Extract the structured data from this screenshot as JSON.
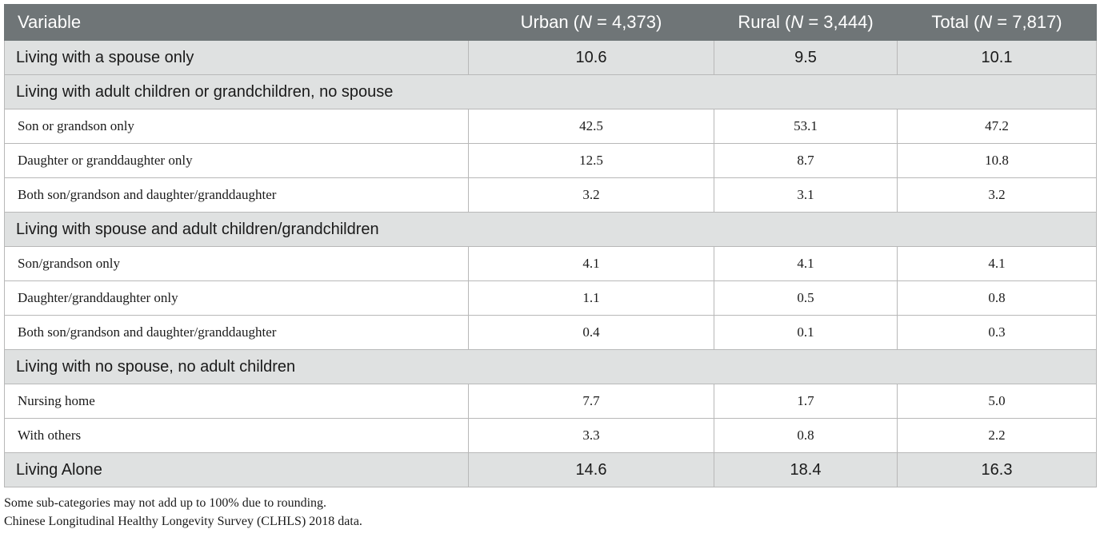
{
  "header": {
    "variable": "Variable",
    "urban_prefix": "Urban (",
    "urban_n": "N",
    "urban_suffix": " = 4,373)",
    "rural_prefix": "Rural (",
    "rural_n": "N",
    "rural_suffix": " = 3,444)",
    "total_prefix": "Total (",
    "total_n": "N",
    "total_suffix": " = 7,817)"
  },
  "rows": [
    {
      "label": "Living with a spouse only",
      "urban": "10.6",
      "rural": "9.5",
      "total": "10.1"
    },
    {
      "label": "Living with adult children or grandchildren, no spouse"
    },
    {
      "label": "Son or grandson only",
      "urban": "42.5",
      "rural": "53.1",
      "total": "47.2"
    },
    {
      "label": "Daughter or granddaughter only",
      "urban": "12.5",
      "rural": "8.7",
      "total": "10.8"
    },
    {
      "label": "Both son/grandson and daughter/granddaughter",
      "urban": "3.2",
      "rural": "3.1",
      "total": "3.2"
    },
    {
      "label": "Living with spouse and adult children/grandchildren"
    },
    {
      "label": "Son/grandson only",
      "urban": "4.1",
      "rural": "4.1",
      "total": "4.1"
    },
    {
      "label": "Daughter/granddaughter only",
      "urban": "1.1",
      "rural": "0.5",
      "total": "0.8"
    },
    {
      "label": "Both son/grandson and daughter/granddaughter",
      "urban": "0.4",
      "rural": "0.1",
      "total": "0.3"
    },
    {
      "label": "Living with no spouse, no adult children"
    },
    {
      "label": "Nursing home",
      "urban": "7.7",
      "rural": "1.7",
      "total": "5.0"
    },
    {
      "label": "With others",
      "urban": "3.3",
      "rural": "0.8",
      "total": "2.2"
    },
    {
      "label": "Living Alone",
      "urban": "14.6",
      "rural": "18.4",
      "total": "16.3"
    }
  ],
  "notes": [
    "Some sub-categories may not add up to 100% due to rounding.",
    "Chinese Longitudinal Healthy Longevity Survey (CLHLS) 2018 data."
  ]
}
